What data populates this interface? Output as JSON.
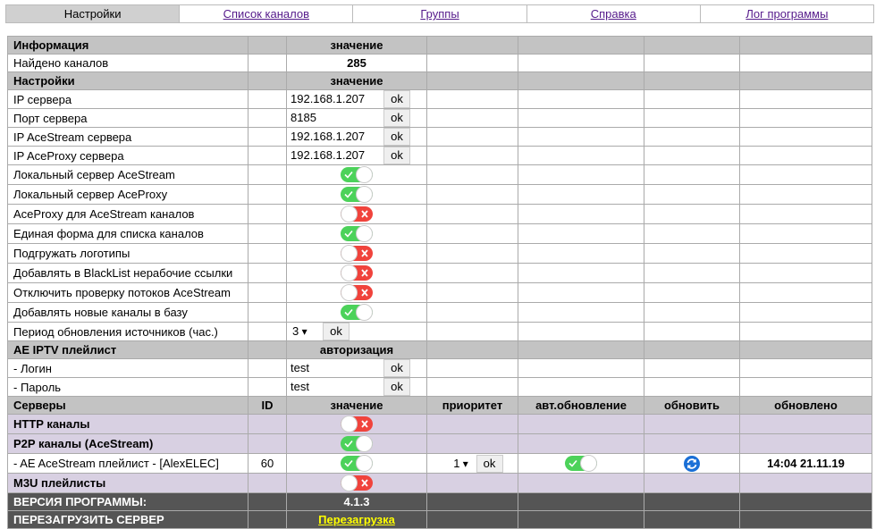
{
  "nav": {
    "items": [
      "Настройки",
      "Список каналов",
      "Группы",
      "Справка",
      "Лог программы"
    ],
    "active_index": 0
  },
  "rows": [
    {
      "kind": "header",
      "label": "Информация",
      "value": "значение"
    },
    {
      "kind": "info",
      "label": "Найдено каналов",
      "value": 285
    },
    {
      "kind": "header",
      "label": "Настройки",
      "value": "значение"
    },
    {
      "kind": "input",
      "label": "IP сервера",
      "value": "192.168.1.207",
      "button": "ok"
    },
    {
      "kind": "input",
      "label": "Порт сервера",
      "value": "8185",
      "button": "ok"
    },
    {
      "kind": "input",
      "label": "IP AceStream сервера",
      "value": "192.168.1.207",
      "button": "ok"
    },
    {
      "kind": "input",
      "label": "IP AceProxy сервера",
      "value": "192.168.1.207",
      "button": "ok"
    },
    {
      "kind": "toggle",
      "label": "Локальный сервер AceStream",
      "on": true
    },
    {
      "kind": "toggle",
      "label": "Локальный сервер AceProxy",
      "on": true
    },
    {
      "kind": "toggle",
      "label": "AceProxy для AceStream каналов",
      "on": false
    },
    {
      "kind": "toggle",
      "label": "Единая форма для списка каналов",
      "on": true
    },
    {
      "kind": "toggle",
      "label": "Подгружать логотипы",
      "on": false
    },
    {
      "kind": "toggle",
      "label": "Добавлять в BlackList нерабочие ссылки",
      "on": false
    },
    {
      "kind": "toggle",
      "label": "Отключить проверку потоков AceStream",
      "on": false
    },
    {
      "kind": "toggle",
      "label": "Добавлять новые каналы в базу",
      "on": true
    },
    {
      "kind": "select",
      "label": "Период обновления источников (час.)",
      "value": 3,
      "button": "ok"
    },
    {
      "kind": "header",
      "label": "AE IPTV плейлист",
      "value": "авторизация"
    },
    {
      "kind": "input",
      "label": "- Логин",
      "value": "test",
      "button": "ok"
    },
    {
      "kind": "input",
      "label": "- Пароль",
      "value": "test",
      "button": "ok"
    },
    {
      "kind": "columns",
      "cells": [
        "Серверы",
        "ID",
        "значение",
        "приоритет",
        "авт.обновление",
        "обновить",
        "обновлено"
      ]
    },
    {
      "kind": "group",
      "label": "HTTP каналы",
      "on": false
    },
    {
      "kind": "group",
      "label": "P2P каналы (AceStream)",
      "on": true
    },
    {
      "kind": "server",
      "label": "- AE AceStream плейлист - [AlexELEC]",
      "id": 60,
      "on": true,
      "priority": 1,
      "button": "ok",
      "auto_update": true,
      "updated": "14:04 21.11.19"
    },
    {
      "kind": "group",
      "label": "M3U плейлисты",
      "on": false
    },
    {
      "kind": "footer",
      "label": "ВЕРСИЯ ПРОГРАММЫ:",
      "value": "4.1.3"
    },
    {
      "kind": "footer",
      "label": "ПЕРЕЗАГРУЗИТЬ СЕРВЕР",
      "link": "Перезагрузка"
    }
  ]
}
